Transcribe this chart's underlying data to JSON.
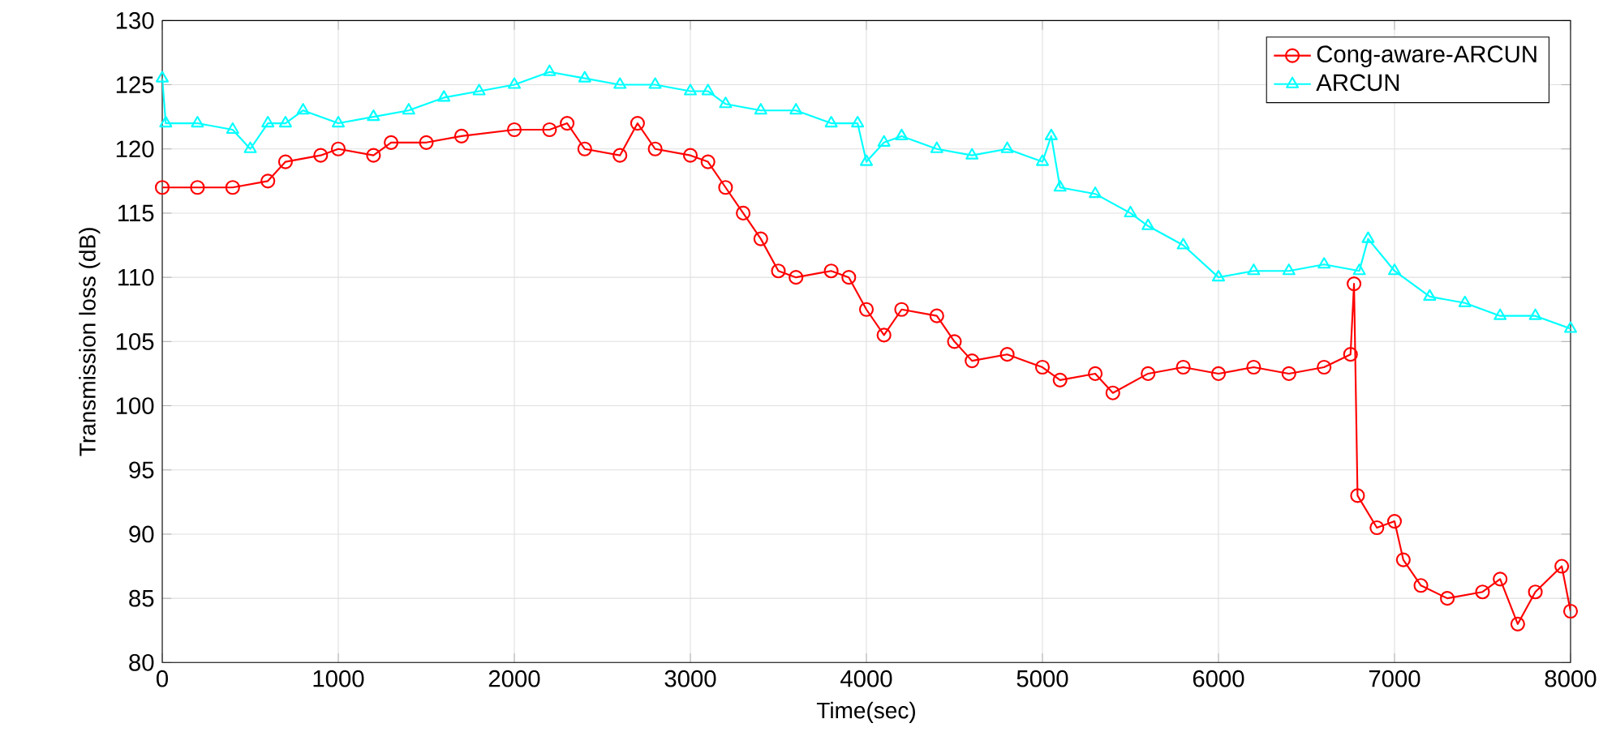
{
  "chart_data": {
    "type": "line",
    "xlabel": "Time(sec)",
    "ylabel": "Transmission loss (dB)",
    "xlim": [
      0,
      8000
    ],
    "ylim": [
      80,
      130
    ],
    "xticks": [
      0,
      1000,
      2000,
      3000,
      4000,
      5000,
      6000,
      7000,
      8000
    ],
    "yticks": [
      80,
      85,
      90,
      95,
      100,
      105,
      110,
      115,
      120,
      125,
      130
    ],
    "grid": true,
    "legend": "top right",
    "line_style": "solid",
    "series": [
      {
        "name": "Cong-aware-ARCUN",
        "color": "#ff0000",
        "marker": "circle",
        "x": [
          0,
          200,
          400,
          600,
          700,
          900,
          1000,
          1200,
          1300,
          1500,
          1700,
          2000,
          2200,
          2300,
          2400,
          2600,
          2700,
          2800,
          3000,
          3100,
          3200,
          3300,
          3400,
          3500,
          3600,
          3800,
          3900,
          4000,
          4100,
          4200,
          4400,
          4500,
          4600,
          4800,
          5000,
          5100,
          5300,
          5400,
          5600,
          5800,
          6000,
          6200,
          6400,
          6600,
          6750,
          6770,
          6790,
          6900,
          7000,
          7050,
          7150,
          7300,
          7500,
          7600,
          7700,
          7800,
          7950,
          8000
        ],
        "values": [
          117,
          117,
          117,
          117.5,
          119,
          119.5,
          120,
          119.5,
          120.5,
          120.5,
          121,
          121.5,
          121.5,
          122,
          120,
          119.5,
          122,
          120,
          119.5,
          119,
          117,
          115,
          113,
          110.5,
          110,
          110.5,
          110,
          107.5,
          105.5,
          107.5,
          107,
          105,
          103.5,
          104,
          103,
          102,
          102.5,
          101,
          102.5,
          103,
          102.5,
          103,
          102.5,
          103,
          104,
          109.5,
          93,
          90.5,
          91,
          88,
          86,
          85,
          85.5,
          86.5,
          83,
          85.5,
          87.5,
          84
        ]
      },
      {
        "name": "ARCUN",
        "color": "#00ffff",
        "marker": "triangle",
        "x": [
          0,
          20,
          200,
          400,
          500,
          600,
          700,
          800,
          1000,
          1200,
          1400,
          1600,
          1800,
          2000,
          2200,
          2400,
          2600,
          2800,
          3000,
          3100,
          3200,
          3400,
          3600,
          3800,
          3950,
          4000,
          4100,
          4200,
          4400,
          4600,
          4800,
          5000,
          5050,
          5100,
          5300,
          5500,
          5600,
          5800,
          6000,
          6200,
          6400,
          6600,
          6800,
          6850,
          7000,
          7200,
          7400,
          7600,
          7800,
          8000
        ],
        "values": [
          125.5,
          122,
          122,
          121.5,
          120,
          122,
          122,
          123,
          122,
          122.5,
          123,
          124,
          124.5,
          125,
          126,
          125.5,
          125,
          125,
          124.5,
          124.5,
          123.5,
          123,
          123,
          122,
          122,
          119,
          120.5,
          121,
          120,
          119.5,
          120,
          119,
          121,
          117,
          116.5,
          115,
          114,
          112.5,
          110,
          110.5,
          110.5,
          111,
          110.5,
          113,
          110.5,
          108.5,
          108,
          107,
          107,
          106
        ]
      }
    ]
  }
}
